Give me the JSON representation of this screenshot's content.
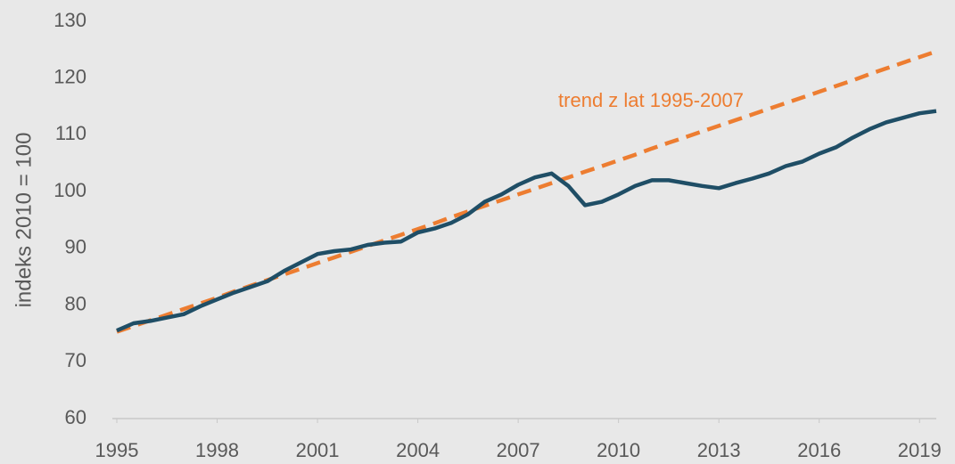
{
  "chart_data": {
    "type": "line",
    "y_label": "indeks 2010 = 100",
    "annotation": "trend z lat 1995-2007",
    "x": [
      1995,
      1995.5,
      1996,
      1996.5,
      1997,
      1997.5,
      1998,
      1998.5,
      1999,
      1999.5,
      2000,
      2000.5,
      2001,
      2001.5,
      2002,
      2002.5,
      2003,
      2003.5,
      2004,
      2004.5,
      2005,
      2005.5,
      2006,
      2006.5,
      2007,
      2007.5,
      2008,
      2008.5,
      2009,
      2009.5,
      2010,
      2010.5,
      2011,
      2011.5,
      2012,
      2012.5,
      2013,
      2013.5,
      2014,
      2014.5,
      2015,
      2015.5,
      2016,
      2016.5,
      2017,
      2017.5,
      2018,
      2018.5,
      2019,
      2019.5
    ],
    "series": [
      {
        "color": "#1f4e66",
        "dashed": false,
        "values": [
          75.5,
          76.8,
          77.2,
          77.8,
          78.4,
          79.8,
          81,
          82.2,
          83.2,
          84.2,
          86,
          87.5,
          89,
          89.5,
          89.8,
          90.6,
          91,
          91.2,
          92.8,
          93.5,
          94.5,
          96,
          98.2,
          99.5,
          101.2,
          102.5,
          103.2,
          101,
          97.6,
          98.2,
          99.5,
          101,
          102,
          102,
          101.5,
          101,
          100.6,
          101.5,
          102.3,
          103.2,
          104.5,
          105.3,
          106.7,
          107.8,
          109.5,
          111,
          112.2,
          113,
          113.8,
          114.2
        ]
      },
      {
        "color": "#ed7d31",
        "dashed": true,
        "values": [
          75.3,
          76.3,
          77.3,
          78.3,
          79.3,
          80.3,
          81.3,
          82.4,
          83.4,
          84.4,
          85.4,
          86.4,
          87.4,
          88.4,
          89.4,
          90.4,
          91.4,
          92.4,
          93.4,
          94.4,
          95.5,
          96.5,
          97.5,
          98.5,
          99.5,
          100.5,
          101.5,
          102.5,
          103.5,
          104.5,
          105.5,
          106.5,
          107.6,
          108.6,
          109.6,
          110.6,
          111.6,
          112.6,
          113.6,
          114.6,
          115.6,
          116.6,
          117.6,
          118.6,
          119.6,
          120.7,
          121.7,
          122.7,
          123.7,
          124.7
        ]
      }
    ],
    "xlim": [
      1995,
      2019.5
    ],
    "xticks": [
      1995,
      1998,
      2001,
      2004,
      2007,
      2010,
      2013,
      2016,
      2019
    ],
    "ylim": [
      60,
      130
    ],
    "yticks": [
      60,
      70,
      80,
      90,
      100,
      110,
      120,
      130
    ],
    "grid": false
  }
}
